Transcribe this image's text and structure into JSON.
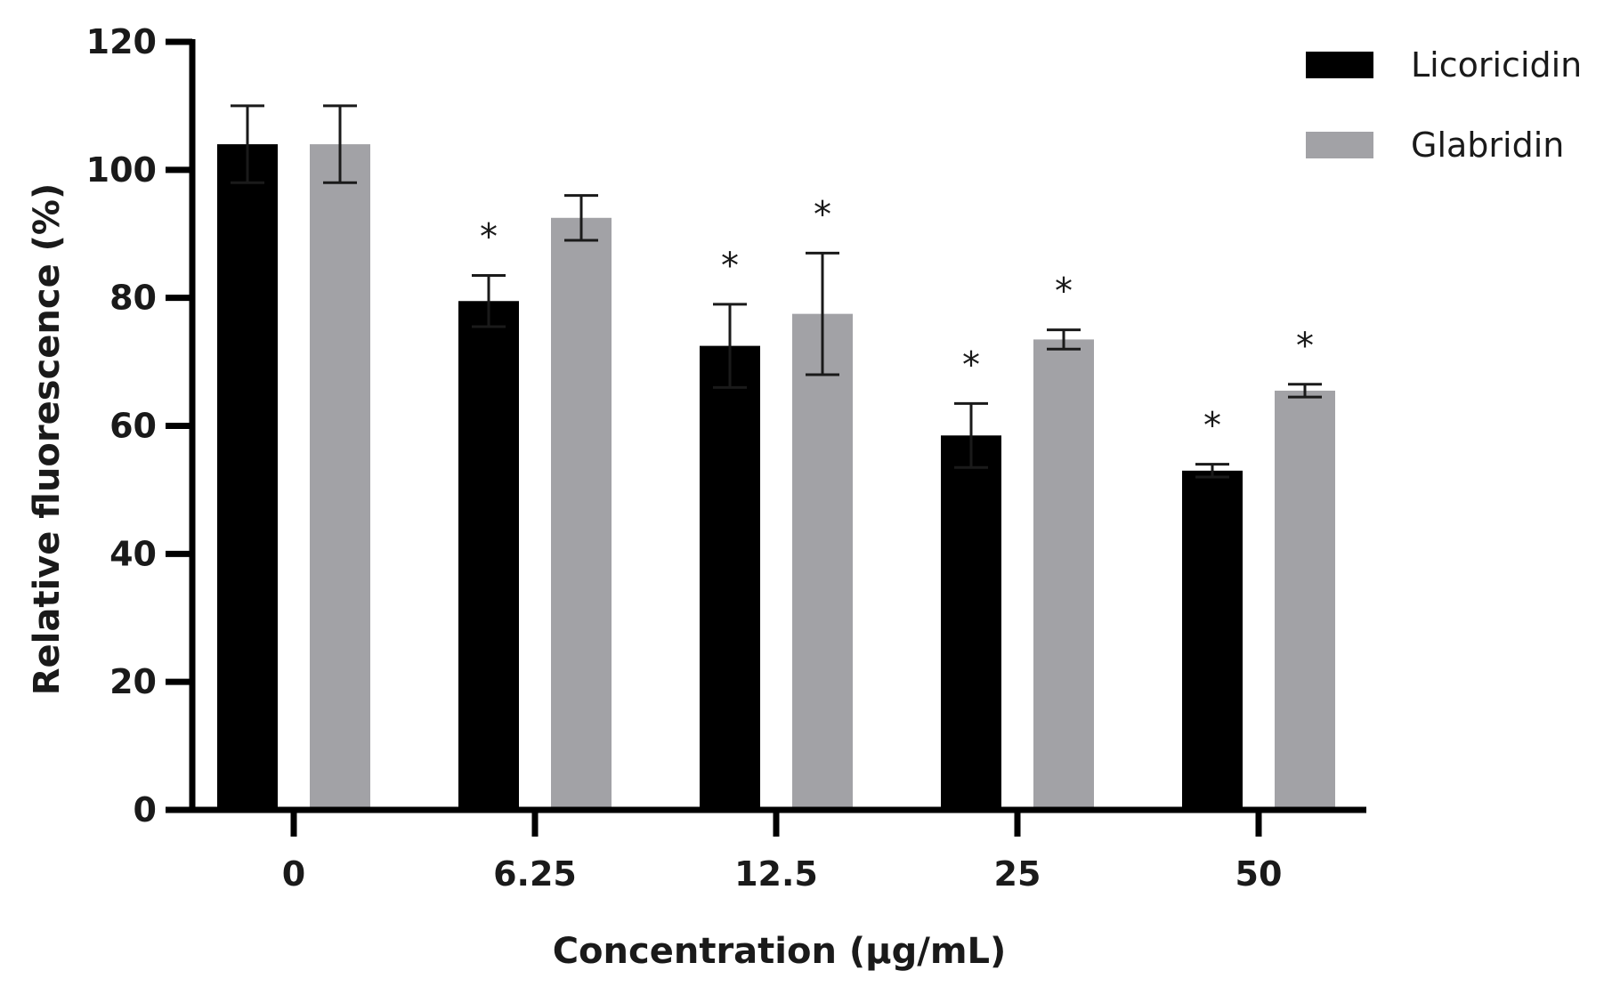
{
  "chart_data": {
    "type": "bar",
    "title": "",
    "xlabel": "Concentration (µg/mL)",
    "ylabel": "Relative fluorescence (%)",
    "ylim": [
      0,
      120
    ],
    "yticks": [
      "0",
      "20",
      "40",
      "60",
      "80",
      "100",
      "120"
    ],
    "categories": [
      "0",
      "6.25",
      "12.5",
      "25",
      "50"
    ],
    "legend_position": "top-right",
    "grid": false,
    "series": [
      {
        "name": "Licoricidin",
        "color": "#000000",
        "values": [
          104,
          79.5,
          72.5,
          58.5,
          53
        ],
        "errors": [
          6,
          4,
          6.5,
          5,
          1
        ],
        "significance": [
          "",
          "*",
          "*",
          "*",
          "*"
        ]
      },
      {
        "name": "Glabridin",
        "color": "#a2a2a6",
        "values": [
          104,
          92.5,
          77.5,
          73.5,
          65.5
        ],
        "errors": [
          6,
          3.5,
          9.5,
          1.5,
          1
        ],
        "significance": [
          "",
          "",
          "*",
          "*",
          "*"
        ]
      }
    ]
  }
}
